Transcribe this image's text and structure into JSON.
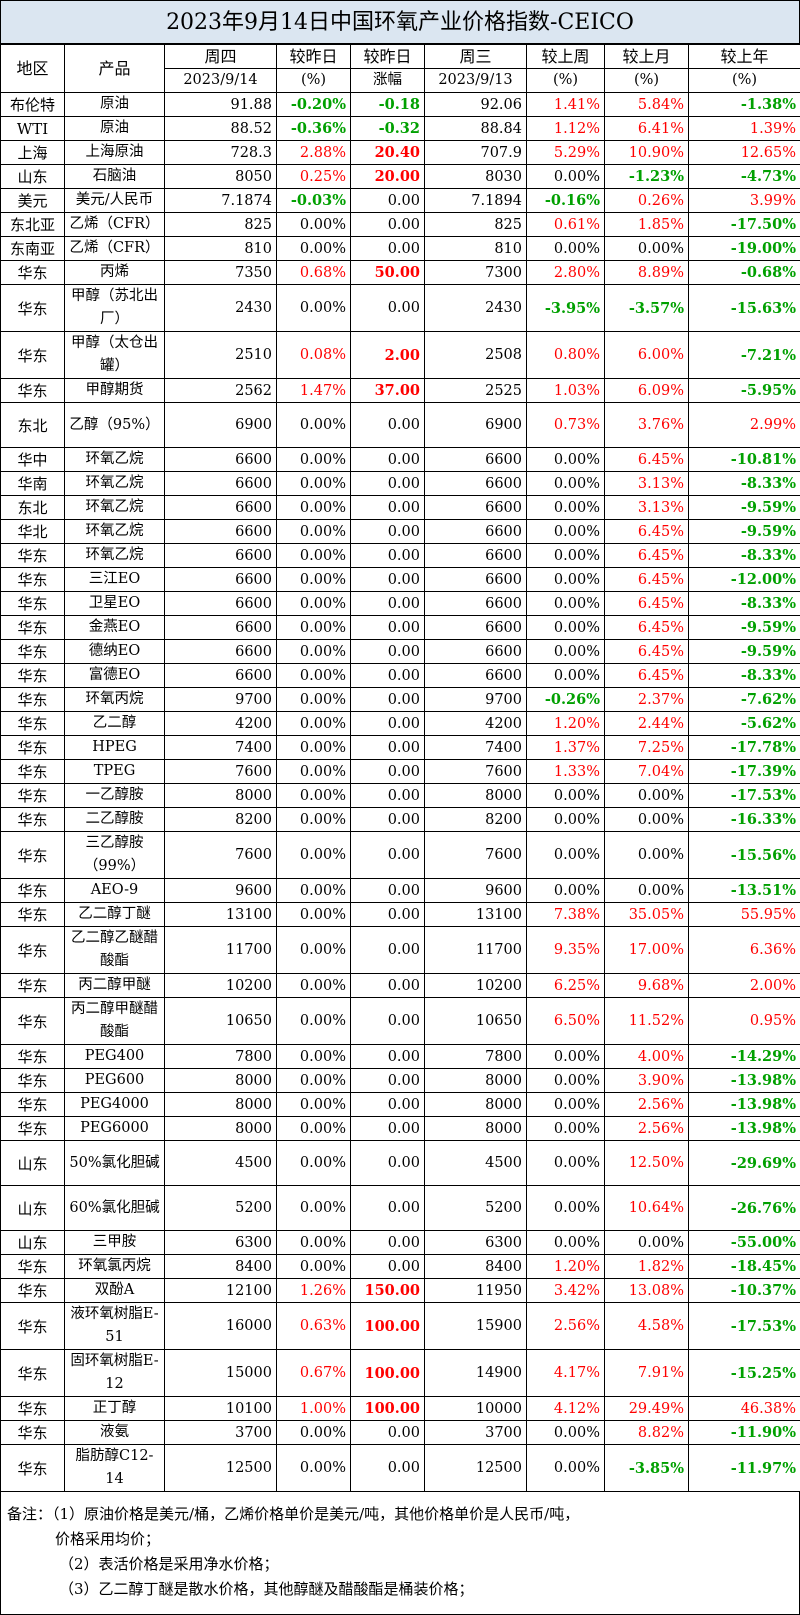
{
  "title": "2023年9月14日中国环氧产业价格指数-CEICO",
  "header": {
    "region": "地区",
    "product": "产品",
    "thu": "周四",
    "thu_date": "2023/9/14",
    "chg_pct_label": "较昨日",
    "chg_pct_unit": "(%)",
    "chg_amt_label": "较昨日",
    "chg_amt_unit": "涨幅",
    "wed": "周三",
    "wed_date": "2023/9/13",
    "wk_label": "较上周",
    "wk_unit": "(%)",
    "mo_label": "较上月",
    "mo_unit": "(%)",
    "yr_label": "较上年",
    "yr_unit": "(%)"
  },
  "rows": [
    {
      "region": "布伦特",
      "product": "原油",
      "thu": "91.88",
      "pct": "-0.20%",
      "amt": "-0.18",
      "wed": "92.06",
      "wk": "1.41%",
      "mo": "5.84%",
      "yr": "-1.38%",
      "tall": false
    },
    {
      "region": "WTI",
      "product": "原油",
      "thu": "88.52",
      "pct": "-0.36%",
      "amt": "-0.32",
      "wed": "88.84",
      "wk": "1.12%",
      "mo": "6.41%",
      "yr": "1.39%",
      "tall": false
    },
    {
      "region": "上海",
      "product": "上海原油",
      "thu": "728.3",
      "pct": "2.88%",
      "amt": "20.40",
      "wed": "707.9",
      "wk": "5.29%",
      "mo": "10.90%",
      "yr": "12.65%",
      "tall": false
    },
    {
      "region": "山东",
      "product": "石脑油",
      "thu": "8050",
      "pct": "0.25%",
      "amt": "20.00",
      "wed": "8030",
      "wk": "0.00%",
      "mo": "-1.23%",
      "yr": "-4.73%",
      "tall": false
    },
    {
      "region": "美元",
      "product": "美元/人民币",
      "thu": "7.1874",
      "pct": "-0.03%",
      "amt": "0.00",
      "wed": "7.1894",
      "wk": "-0.16%",
      "mo": "0.26%",
      "yr": "3.99%",
      "tall": false
    },
    {
      "region": "东北亚",
      "product": "乙烯（CFR）",
      "thu": "825",
      "pct": "0.00%",
      "amt": "0.00",
      "wed": "825",
      "wk": "0.61%",
      "mo": "1.85%",
      "yr": "-17.50%",
      "tall": false
    },
    {
      "region": "东南亚",
      "product": "乙烯（CFR）",
      "thu": "810",
      "pct": "0.00%",
      "amt": "0.00",
      "wed": "810",
      "wk": "0.00%",
      "mo": "0.00%",
      "yr": "-19.00%",
      "tall": false
    },
    {
      "region": "华东",
      "product": "丙烯",
      "thu": "7350",
      "pct": "0.68%",
      "amt": "50.00",
      "wed": "7300",
      "wk": "2.80%",
      "mo": "8.89%",
      "yr": "-0.68%",
      "tall": false
    },
    {
      "region": "华东",
      "product": "甲醇（苏北出厂）",
      "thu": "2430",
      "pct": "0.00%",
      "amt": "0.00",
      "wed": "2430",
      "wk": "-3.95%",
      "mo": "-3.57%",
      "yr": "-15.63%",
      "tall": true
    },
    {
      "region": "华东",
      "product": "甲醇（太仓出罐）",
      "thu": "2510",
      "pct": "0.08%",
      "amt": "2.00",
      "wed": "2508",
      "wk": "0.80%",
      "mo": "6.00%",
      "yr": "-7.21%",
      "tall": true
    },
    {
      "region": "华东",
      "product": "甲醇期货",
      "thu": "2562",
      "pct": "1.47%",
      "amt": "37.00",
      "wed": "2525",
      "wk": "1.03%",
      "mo": "6.09%",
      "yr": "-5.95%",
      "tall": false
    },
    {
      "region": "东北",
      "product": "乙醇（95%）",
      "thu": "6900",
      "pct": "0.00%",
      "amt": "0.00",
      "wed": "6900",
      "wk": "0.73%",
      "mo": "3.76%",
      "yr": "2.99%",
      "tall": true
    },
    {
      "region": "华中",
      "product": "环氧乙烷",
      "thu": "6600",
      "pct": "0.00%",
      "amt": "0.00",
      "wed": "6600",
      "wk": "0.00%",
      "mo": "6.45%",
      "yr": "-10.81%",
      "tall": false
    },
    {
      "region": "华南",
      "product": "环氧乙烷",
      "thu": "6600",
      "pct": "0.00%",
      "amt": "0.00",
      "wed": "6600",
      "wk": "0.00%",
      "mo": "3.13%",
      "yr": "-8.33%",
      "tall": false
    },
    {
      "region": "东北",
      "product": "环氧乙烷",
      "thu": "6600",
      "pct": "0.00%",
      "amt": "0.00",
      "wed": "6600",
      "wk": "0.00%",
      "mo": "3.13%",
      "yr": "-9.59%",
      "tall": false
    },
    {
      "region": "华北",
      "product": "环氧乙烷",
      "thu": "6600",
      "pct": "0.00%",
      "amt": "0.00",
      "wed": "6600",
      "wk": "0.00%",
      "mo": "6.45%",
      "yr": "-9.59%",
      "tall": false
    },
    {
      "region": "华东",
      "product": "环氧乙烷",
      "thu": "6600",
      "pct": "0.00%",
      "amt": "0.00",
      "wed": "6600",
      "wk": "0.00%",
      "mo": "6.45%",
      "yr": "-8.33%",
      "tall": false
    },
    {
      "region": "华东",
      "product": "三江EO",
      "thu": "6600",
      "pct": "0.00%",
      "amt": "0.00",
      "wed": "6600",
      "wk": "0.00%",
      "mo": "6.45%",
      "yr": "-12.00%",
      "tall": false
    },
    {
      "region": "华东",
      "product": "卫星EO",
      "thu": "6600",
      "pct": "0.00%",
      "amt": "0.00",
      "wed": "6600",
      "wk": "0.00%",
      "mo": "6.45%",
      "yr": "-8.33%",
      "tall": false
    },
    {
      "region": "华东",
      "product": "金燕EO",
      "thu": "6600",
      "pct": "0.00%",
      "amt": "0.00",
      "wed": "6600",
      "wk": "0.00%",
      "mo": "6.45%",
      "yr": "-9.59%",
      "tall": false
    },
    {
      "region": "华东",
      "product": "德纳EO",
      "thu": "6600",
      "pct": "0.00%",
      "amt": "0.00",
      "wed": "6600",
      "wk": "0.00%",
      "mo": "6.45%",
      "yr": "-9.59%",
      "tall": false
    },
    {
      "region": "华东",
      "product": "富德EO",
      "thu": "6600",
      "pct": "0.00%",
      "amt": "0.00",
      "wed": "6600",
      "wk": "0.00%",
      "mo": "6.45%",
      "yr": "-8.33%",
      "tall": false
    },
    {
      "region": "华东",
      "product": "环氧丙烷",
      "thu": "9700",
      "pct": "0.00%",
      "amt": "0.00",
      "wed": "9700",
      "wk": "-0.26%",
      "mo": "2.37%",
      "yr": "-7.62%",
      "tall": false
    },
    {
      "region": "华东",
      "product": "乙二醇",
      "thu": "4200",
      "pct": "0.00%",
      "amt": "0.00",
      "wed": "4200",
      "wk": "1.20%",
      "mo": "2.44%",
      "yr": "-5.62%",
      "tall": false
    },
    {
      "region": "华东",
      "product": "HPEG",
      "thu": "7400",
      "pct": "0.00%",
      "amt": "0.00",
      "wed": "7400",
      "wk": "1.37%",
      "mo": "7.25%",
      "yr": "-17.78%",
      "tall": false
    },
    {
      "region": "华东",
      "product": "TPEG",
      "thu": "7600",
      "pct": "0.00%",
      "amt": "0.00",
      "wed": "7600",
      "wk": "1.33%",
      "mo": "7.04%",
      "yr": "-17.39%",
      "tall": false
    },
    {
      "region": "华东",
      "product": "一乙醇胺",
      "thu": "8000",
      "pct": "0.00%",
      "amt": "0.00",
      "wed": "8000",
      "wk": "0.00%",
      "mo": "0.00%",
      "yr": "-17.53%",
      "tall": false
    },
    {
      "region": "华东",
      "product": "二乙醇胺",
      "thu": "8200",
      "pct": "0.00%",
      "amt": "0.00",
      "wed": "8200",
      "wk": "0.00%",
      "mo": "0.00%",
      "yr": "-16.33%",
      "tall": false
    },
    {
      "region": "华东",
      "product": "三乙醇胺（99%）",
      "thu": "7600",
      "pct": "0.00%",
      "amt": "0.00",
      "wed": "7600",
      "wk": "0.00%",
      "mo": "0.00%",
      "yr": "-15.56%",
      "tall": true
    },
    {
      "region": "华东",
      "product": "AEO-9",
      "thu": "9600",
      "pct": "0.00%",
      "amt": "0.00",
      "wed": "9600",
      "wk": "0.00%",
      "mo": "0.00%",
      "yr": "-13.51%",
      "tall": false
    },
    {
      "region": "华东",
      "product": "乙二醇丁醚",
      "thu": "13100",
      "pct": "0.00%",
      "amt": "0.00",
      "wed": "13100",
      "wk": "7.38%",
      "mo": "35.05%",
      "yr": "55.95%",
      "tall": false
    },
    {
      "region": "华东",
      "product": "乙二醇乙醚醋酸酯",
      "thu": "11700",
      "pct": "0.00%",
      "amt": "0.00",
      "wed": "11700",
      "wk": "9.35%",
      "mo": "17.00%",
      "yr": "6.36%",
      "tall": true
    },
    {
      "region": "华东",
      "product": "丙二醇甲醚",
      "thu": "10200",
      "pct": "0.00%",
      "amt": "0.00",
      "wed": "10200",
      "wk": "6.25%",
      "mo": "9.68%",
      "yr": "2.00%",
      "tall": false
    },
    {
      "region": "华东",
      "product": "丙二醇甲醚醋酸酯",
      "thu": "10650",
      "pct": "0.00%",
      "amt": "0.00",
      "wed": "10650",
      "wk": "6.50%",
      "mo": "11.52%",
      "yr": "0.95%",
      "tall": true
    },
    {
      "region": "华东",
      "product": "PEG400",
      "thu": "7800",
      "pct": "0.00%",
      "amt": "0.00",
      "wed": "7800",
      "wk": "0.00%",
      "mo": "4.00%",
      "yr": "-14.29%",
      "tall": false
    },
    {
      "region": "华东",
      "product": "PEG600",
      "thu": "8000",
      "pct": "0.00%",
      "amt": "0.00",
      "wed": "8000",
      "wk": "0.00%",
      "mo": "3.90%",
      "yr": "-13.98%",
      "tall": false
    },
    {
      "region": "华东",
      "product": "PEG4000",
      "thu": "8000",
      "pct": "0.00%",
      "amt": "0.00",
      "wed": "8000",
      "wk": "0.00%",
      "mo": "2.56%",
      "yr": "-13.98%",
      "tall": false
    },
    {
      "region": "华东",
      "product": "PEG6000",
      "thu": "8000",
      "pct": "0.00%",
      "amt": "0.00",
      "wed": "8000",
      "wk": "0.00%",
      "mo": "2.56%",
      "yr": "-13.98%",
      "tall": false
    },
    {
      "region": "山东",
      "product": "50%氯化胆碱",
      "thu": "4500",
      "pct": "0.00%",
      "amt": "0.00",
      "wed": "4500",
      "wk": "0.00%",
      "mo": "12.50%",
      "yr": "-29.69%",
      "tall": true
    },
    {
      "region": "山东",
      "product": "60%氯化胆碱",
      "thu": "5200",
      "pct": "0.00%",
      "amt": "0.00",
      "wed": "5200",
      "wk": "0.00%",
      "mo": "10.64%",
      "yr": "-26.76%",
      "tall": true
    },
    {
      "region": "山东",
      "product": "三甲胺",
      "thu": "6300",
      "pct": "0.00%",
      "amt": "0.00",
      "wed": "6300",
      "wk": "0.00%",
      "mo": "0.00%",
      "yr": "-55.00%",
      "tall": false
    },
    {
      "region": "华东",
      "product": "环氧氯丙烷",
      "thu": "8400",
      "pct": "0.00%",
      "amt": "0.00",
      "wed": "8400",
      "wk": "1.20%",
      "mo": "1.82%",
      "yr": "-18.45%",
      "tall": false
    },
    {
      "region": "华东",
      "product": "双酚A",
      "thu": "12100",
      "pct": "1.26%",
      "amt": "150.00",
      "wed": "11950",
      "wk": "3.42%",
      "mo": "13.08%",
      "yr": "-10.37%",
      "tall": false
    },
    {
      "region": "华东",
      "product": "液环氧树脂E-51",
      "thu": "16000",
      "pct": "0.63%",
      "amt": "100.00",
      "wed": "15900",
      "wk": "2.56%",
      "mo": "4.58%",
      "yr": "-17.53%",
      "tall": true
    },
    {
      "region": "华东",
      "product": "固环氧树脂E-12",
      "thu": "15000",
      "pct": "0.67%",
      "amt": "100.00",
      "wed": "14900",
      "wk": "4.17%",
      "mo": "7.91%",
      "yr": "-15.25%",
      "tall": true
    },
    {
      "region": "华东",
      "product": "正丁醇",
      "thu": "10100",
      "pct": "1.00%",
      "amt": "100.00",
      "wed": "10000",
      "wk": "4.12%",
      "mo": "29.49%",
      "yr": "46.38%",
      "tall": false
    },
    {
      "region": "华东",
      "product": "液氨",
      "thu": "3700",
      "pct": "0.00%",
      "amt": "0.00",
      "wed": "3700",
      "wk": "0.00%",
      "mo": "8.82%",
      "yr": "-11.90%",
      "tall": false
    },
    {
      "region": "华东",
      "product": "脂肪醇C12-14",
      "thu": "12500",
      "pct": "0.00%",
      "amt": "0.00",
      "wed": "12500",
      "wk": "0.00%",
      "mo": "-3.85%",
      "yr": "-11.97%",
      "tall": true
    }
  ],
  "notes": {
    "line1": "备注：（1）原油价格是美元/桶，乙烯价格单价是美元/吨，其他价格单价是人民币/吨，",
    "line1b": "价格采用均价；",
    "line2": "（2）表活价格是采用净水价格；",
    "line3": "（3）乙二醇丁醚是散水价格，其他醇醚及醋酸酯是桶装价格；"
  },
  "colors": {
    "title_bg": "#dbe6f1",
    "positive": "#ff0000",
    "negative": "#00a000"
  }
}
